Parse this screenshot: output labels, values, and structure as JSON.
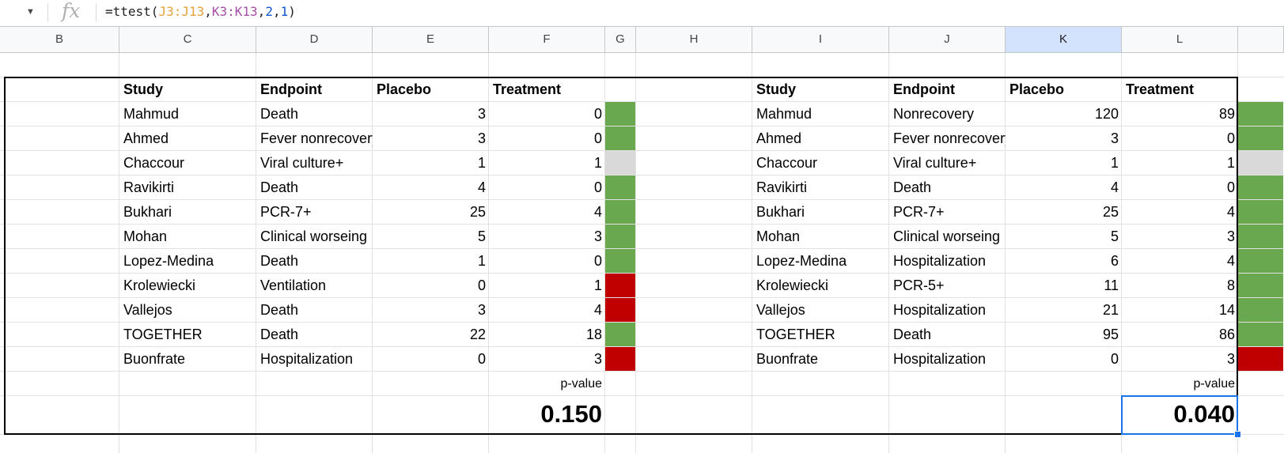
{
  "formula_bar": {
    "dropdown_icon": "caret-down-icon",
    "fx_label": "fx",
    "formula_parts": [
      {
        "text": "=ttest(",
        "kind": "plain"
      },
      {
        "text": "J3:J13",
        "kind": "r1"
      },
      {
        "text": ",",
        "kind": "plain"
      },
      {
        "text": "K3:K13",
        "kind": "r2"
      },
      {
        "text": ",",
        "kind": "plain"
      },
      {
        "text": "2",
        "kind": "num"
      },
      {
        "text": ",",
        "kind": "plain"
      },
      {
        "text": "1",
        "kind": "num"
      },
      {
        "text": ")",
        "kind": "plain"
      }
    ]
  },
  "columns": [
    "B",
    "C",
    "D",
    "E",
    "F",
    "G",
    "H",
    "I",
    "J",
    "K",
    "L"
  ],
  "active_column": "K",
  "colors": {
    "green": "#6aa84f",
    "gray": "#d9d9d9",
    "red": "#c00000",
    "selection": "#1a73e8"
  },
  "left_table": {
    "headers": [
      "Study",
      "Endpoint",
      "Placebo",
      "Treatment"
    ],
    "rows": [
      {
        "study": "Mahmud",
        "endpoint": "Death",
        "placebo": "3",
        "treatment": "0",
        "status": "green"
      },
      {
        "study": "Ahmed",
        "endpoint": "Fever nonrecovery",
        "placebo": "3",
        "treatment": "0",
        "status": "green"
      },
      {
        "study": "Chaccour",
        "endpoint": "Viral culture+",
        "placebo": "1",
        "treatment": "1",
        "status": "gray"
      },
      {
        "study": "Ravikirti",
        "endpoint": "Death",
        "placebo": "4",
        "treatment": "0",
        "status": "green"
      },
      {
        "study": "Bukhari",
        "endpoint": "PCR-7+",
        "placebo": "25",
        "treatment": "4",
        "status": "green"
      },
      {
        "study": "Mohan",
        "endpoint": "Clinical worseing",
        "placebo": "5",
        "treatment": "3",
        "status": "green"
      },
      {
        "study": "Lopez-Medina",
        "endpoint": "Death",
        "placebo": "1",
        "treatment": "0",
        "status": "green"
      },
      {
        "study": "Krolewiecki",
        "endpoint": "Ventilation",
        "placebo": "0",
        "treatment": "1",
        "status": "red"
      },
      {
        "study": "Vallejos",
        "endpoint": "Death",
        "placebo": "3",
        "treatment": "4",
        "status": "red"
      },
      {
        "study": "TOGETHER",
        "endpoint": "Death",
        "placebo": "22",
        "treatment": "18",
        "status": "green"
      },
      {
        "study": "Buonfrate",
        "endpoint": "Hospitalization",
        "placebo": "0",
        "treatment": "3",
        "status": "red"
      }
    ],
    "pvalue_label": "p-value",
    "pvalue": "0.150"
  },
  "right_table": {
    "headers": [
      "Study",
      "Endpoint",
      "Placebo",
      "Treatment"
    ],
    "rows": [
      {
        "study": "Mahmud",
        "endpoint": "Nonrecovery",
        "placebo": "120",
        "treatment": "89",
        "status": "green"
      },
      {
        "study": "Ahmed",
        "endpoint": "Fever nonrecovery",
        "placebo": "3",
        "treatment": "0",
        "status": "green"
      },
      {
        "study": "Chaccour",
        "endpoint": "Viral culture+",
        "placebo": "1",
        "treatment": "1",
        "status": "gray"
      },
      {
        "study": "Ravikirti",
        "endpoint": "Death",
        "placebo": "4",
        "treatment": "0",
        "status": "green"
      },
      {
        "study": "Bukhari",
        "endpoint": "PCR-7+",
        "placebo": "25",
        "treatment": "4",
        "status": "green"
      },
      {
        "study": "Mohan",
        "endpoint": "Clinical worseing",
        "placebo": "5",
        "treatment": "3",
        "status": "green"
      },
      {
        "study": "Lopez-Medina",
        "endpoint": "Hospitalization",
        "placebo": "6",
        "treatment": "4",
        "status": "green"
      },
      {
        "study": "Krolewiecki",
        "endpoint": "PCR-5+",
        "placebo": "11",
        "treatment": "8",
        "status": "green"
      },
      {
        "study": "Vallejos",
        "endpoint": "Hospitalization",
        "placebo": "21",
        "treatment": "14",
        "status": "green"
      },
      {
        "study": "TOGETHER",
        "endpoint": "Death",
        "placebo": "95",
        "treatment": "86",
        "status": "green"
      },
      {
        "study": "Buonfrate",
        "endpoint": "Hospitalization",
        "placebo": "0",
        "treatment": "3",
        "status": "red"
      }
    ],
    "pvalue_label": "p-value",
    "pvalue": "0.040"
  }
}
